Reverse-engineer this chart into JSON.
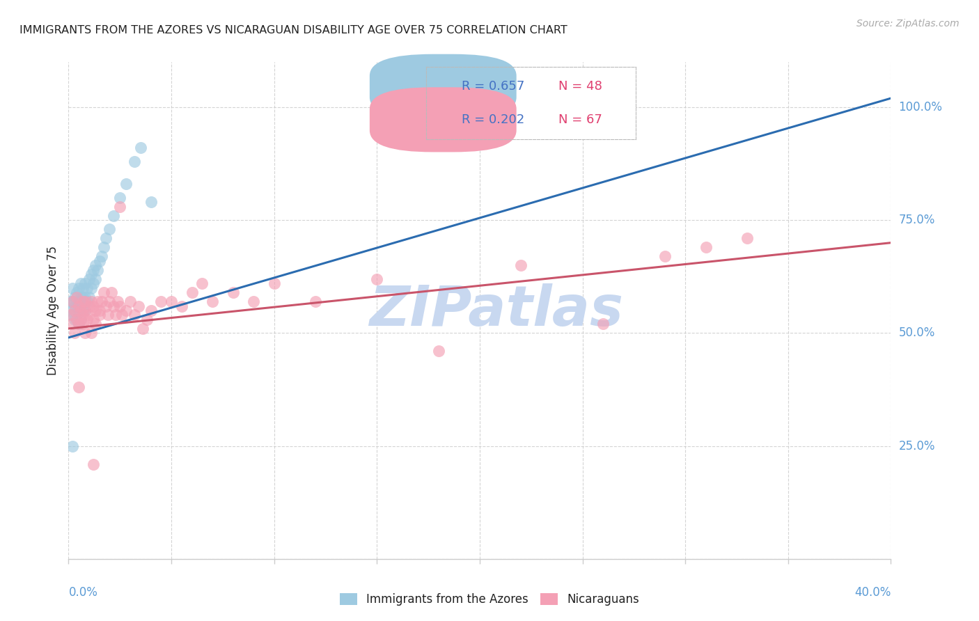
{
  "title": "IMMIGRANTS FROM THE AZORES VS NICARAGUAN DISABILITY AGE OVER 75 CORRELATION CHART",
  "source": "Source: ZipAtlas.com",
  "ylabel": "Disability Age Over 75",
  "legend1_label": "Immigrants from the Azores",
  "legend2_label": "Nicaraguans",
  "blue_color": "#9ecae1",
  "blue_line_color": "#2b6cb0",
  "pink_color": "#f4a0b5",
  "pink_line_color": "#c9546a",
  "legend_r_color": "#4472c4",
  "legend_n_color": "#e04070",
  "title_color": "#222222",
  "axis_label_color": "#5b9bd5",
  "watermark_color": "#c8d8f0",
  "background_color": "#ffffff",
  "grid_color": "#d0d0d0",
  "xmin": 0.0,
  "xmax": 0.4,
  "ymin": 0.0,
  "ymax": 1.1,
  "yticks": [
    0.0,
    0.25,
    0.5,
    0.75,
    1.0
  ],
  "ytick_labels": [
    "",
    "25.0%",
    "50.0%",
    "75.0%",
    "100.0%"
  ],
  "azores_x": [
    0.001,
    0.001,
    0.002,
    0.002,
    0.002,
    0.003,
    0.003,
    0.003,
    0.004,
    0.004,
    0.004,
    0.005,
    0.005,
    0.005,
    0.005,
    0.006,
    0.006,
    0.006,
    0.006,
    0.007,
    0.007,
    0.007,
    0.008,
    0.008,
    0.008,
    0.009,
    0.009,
    0.01,
    0.01,
    0.011,
    0.011,
    0.012,
    0.012,
    0.013,
    0.013,
    0.014,
    0.015,
    0.016,
    0.017,
    0.018,
    0.02,
    0.022,
    0.025,
    0.028,
    0.032,
    0.035,
    0.04,
    0.002
  ],
  "azores_y": [
    0.55,
    0.57,
    0.54,
    0.57,
    0.6,
    0.53,
    0.56,
    0.58,
    0.53,
    0.56,
    0.59,
    0.52,
    0.55,
    0.57,
    0.6,
    0.53,
    0.56,
    0.58,
    0.61,
    0.55,
    0.58,
    0.6,
    0.55,
    0.58,
    0.61,
    0.57,
    0.6,
    0.58,
    0.62,
    0.6,
    0.63,
    0.61,
    0.64,
    0.62,
    0.65,
    0.64,
    0.66,
    0.67,
    0.69,
    0.71,
    0.73,
    0.76,
    0.8,
    0.83,
    0.88,
    0.91,
    0.79,
    0.25
  ],
  "nicaraguan_x": [
    0.001,
    0.002,
    0.002,
    0.003,
    0.003,
    0.004,
    0.004,
    0.005,
    0.005,
    0.006,
    0.006,
    0.007,
    0.007,
    0.007,
    0.008,
    0.008,
    0.008,
    0.009,
    0.01,
    0.01,
    0.011,
    0.011,
    0.012,
    0.012,
    0.013,
    0.013,
    0.014,
    0.015,
    0.015,
    0.016,
    0.017,
    0.018,
    0.019,
    0.02,
    0.021,
    0.022,
    0.023,
    0.024,
    0.025,
    0.026,
    0.028,
    0.03,
    0.032,
    0.034,
    0.036,
    0.038,
    0.04,
    0.045,
    0.05,
    0.055,
    0.06,
    0.065,
    0.07,
    0.08,
    0.09,
    0.1,
    0.12,
    0.15,
    0.18,
    0.22,
    0.26,
    0.29,
    0.31,
    0.33,
    0.005,
    0.025,
    0.012
  ],
  "nicaraguan_y": [
    0.54,
    0.57,
    0.52,
    0.55,
    0.5,
    0.58,
    0.53,
    0.56,
    0.52,
    0.55,
    0.53,
    0.54,
    0.57,
    0.52,
    0.55,
    0.5,
    0.57,
    0.53,
    0.56,
    0.54,
    0.5,
    0.57,
    0.53,
    0.56,
    0.52,
    0.55,
    0.57,
    0.54,
    0.55,
    0.57,
    0.59,
    0.56,
    0.54,
    0.57,
    0.59,
    0.56,
    0.54,
    0.57,
    0.56,
    0.54,
    0.55,
    0.57,
    0.54,
    0.56,
    0.51,
    0.53,
    0.55,
    0.57,
    0.57,
    0.56,
    0.59,
    0.61,
    0.57,
    0.59,
    0.57,
    0.61,
    0.57,
    0.62,
    0.46,
    0.65,
    0.52,
    0.67,
    0.69,
    0.71,
    0.38,
    0.78,
    0.21
  ],
  "blue_line_x0": 0.0,
  "blue_line_x1": 0.4,
  "pink_line_x0": 0.0,
  "pink_line_x1": 0.4,
  "blue_line_y0": 0.49,
  "blue_line_y1": 1.02,
  "pink_line_y0": 0.51,
  "pink_line_y1": 0.7
}
